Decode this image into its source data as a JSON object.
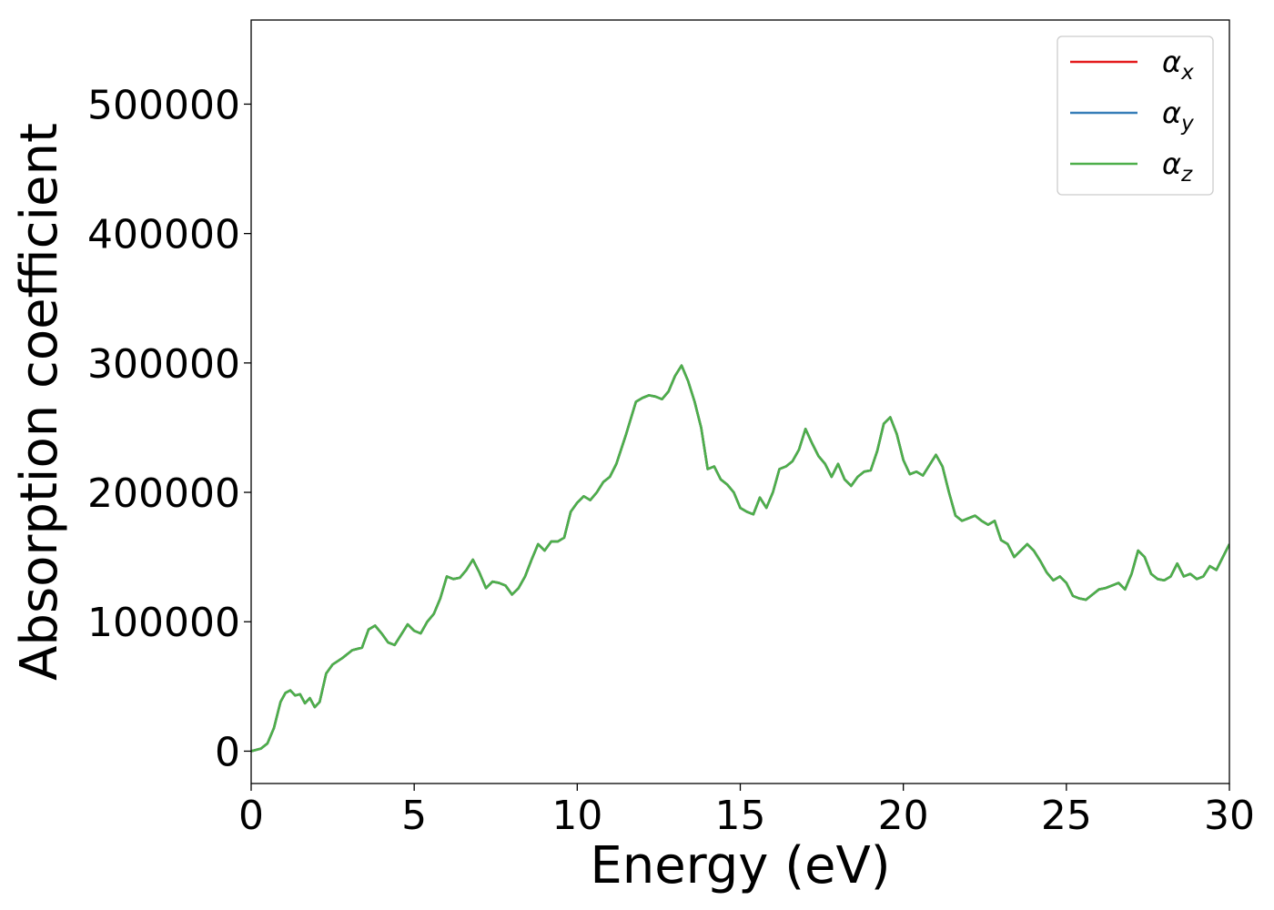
{
  "chart_data": {
    "type": "line",
    "title": "",
    "xlabel": "Energy (eV)",
    "ylabel": "Absorption coefficient",
    "xlim": [
      0,
      30
    ],
    "ylim": [
      -25000,
      565000
    ],
    "xticks": [
      0,
      5,
      10,
      15,
      20,
      25,
      30
    ],
    "xtick_labels": [
      "0",
      "5",
      "10",
      "15",
      "20",
      "25",
      "30"
    ],
    "yticks": [
      0,
      100000,
      200000,
      300000,
      400000,
      500000
    ],
    "ytick_labels": [
      "0",
      "100000",
      "200000",
      "300000",
      "400000",
      "500000"
    ],
    "grid": false,
    "legend_position": "top-right",
    "colors": {
      "alpha_x": "#e41a1c",
      "alpha_y": "#377eb8",
      "alpha_z": "#4daf4a"
    },
    "legend": [
      {
        "symbol": "α",
        "subscript": "x",
        "color": "#e41a1c"
      },
      {
        "symbol": "α",
        "subscript": "y",
        "color": "#377eb8"
      },
      {
        "symbol": "α",
        "subscript": "z",
        "color": "#4daf4a"
      }
    ],
    "note": "All three series overlap exactly; only the last-drawn (alpha_z) is visible.",
    "x": [
      0,
      0.3,
      0.5,
      0.7,
      0.9,
      1.05,
      1.2,
      1.35,
      1.5,
      1.65,
      1.8,
      1.95,
      2.1,
      2.3,
      2.5,
      2.8,
      3.1,
      3.4,
      3.6,
      3.8,
      4.0,
      4.2,
      4.4,
      4.6,
      4.8,
      5.0,
      5.2,
      5.4,
      5.6,
      5.8,
      6.0,
      6.2,
      6.4,
      6.6,
      6.8,
      7.0,
      7.2,
      7.4,
      7.6,
      7.8,
      8.0,
      8.2,
      8.4,
      8.6,
      8.8,
      9.0,
      9.2,
      9.4,
      9.6,
      9.8,
      10.0,
      10.2,
      10.4,
      10.6,
      10.8,
      11.0,
      11.2,
      11.5,
      11.8,
      12.0,
      12.2,
      12.4,
      12.6,
      12.8,
      13.0,
      13.2,
      13.4,
      13.6,
      13.8,
      14.0,
      14.2,
      14.4,
      14.6,
      14.8,
      15.0,
      15.2,
      15.4,
      15.6,
      15.8,
      16.0,
      16.2,
      16.4,
      16.6,
      16.8,
      17.0,
      17.2,
      17.4,
      17.6,
      17.8,
      18.0,
      18.2,
      18.4,
      18.6,
      18.8,
      19.0,
      19.2,
      19.4,
      19.6,
      19.8,
      20.0,
      20.2,
      20.4,
      20.6,
      20.8,
      21.0,
      21.2,
      21.4,
      21.6,
      21.8,
      22.0,
      22.2,
      22.4,
      22.6,
      22.8,
      23.0,
      23.2,
      23.4,
      23.6,
      23.8,
      24.0,
      24.2,
      24.4,
      24.6,
      24.8,
      25.0,
      25.2,
      25.4,
      25.6,
      25.8,
      26.0,
      26.2,
      26.4,
      26.6,
      26.8,
      27.0,
      27.2,
      27.4,
      27.6,
      27.8,
      28.0,
      28.2,
      28.4,
      28.6,
      28.8,
      29.0,
      29.2,
      29.4,
      29.6,
      29.8,
      30.0
    ],
    "series": [
      {
        "name": "αx",
        "color": "#e41a1c",
        "values": [
          0,
          2000,
          6000,
          18000,
          38000,
          45000,
          47000,
          43000,
          44000,
          37000,
          41000,
          34000,
          38000,
          60000,
          67000,
          72000,
          78000,
          80000,
          94000,
          97000,
          91000,
          84000,
          82000,
          90000,
          98000,
          93000,
          91000,
          100000,
          106000,
          118000,
          135000,
          133000,
          134000,
          140000,
          148000,
          138000,
          126000,
          131000,
          130000,
          128000,
          121000,
          126000,
          135000,
          148000,
          160000,
          155000,
          162000,
          162000,
          165000,
          185000,
          192000,
          197000,
          194000,
          200000,
          208000,
          212000,
          222000,
          245000,
          270000,
          273000,
          275000,
          274000,
          272000,
          278000,
          290000,
          298000,
          286000,
          270000,
          250000,
          218000,
          220000,
          210000,
          206000,
          200000,
          188000,
          185000,
          183000,
          196000,
          188000,
          200000,
          218000,
          220000,
          224000,
          233000,
          249000,
          238000,
          228000,
          222000,
          212000,
          222000,
          210000,
          205000,
          212000,
          216000,
          217000,
          232000,
          253000,
          258000,
          245000,
          225000,
          214000,
          216000,
          213000,
          221000,
          229000,
          220000,
          200000,
          182000,
          178000,
          180000,
          182000,
          178000,
          175000,
          178000,
          163000,
          160000,
          150000,
          155000,
          160000,
          155000,
          147000,
          138000,
          132000,
          135000,
          130000,
          120000,
          118000,
          117000,
          121000,
          125000,
          126000,
          128000,
          130000,
          125000,
          137000,
          155000,
          150000,
          137000,
          133000,
          132000,
          135000,
          145000,
          135000,
          137000,
          133000,
          135000,
          143000,
          140000,
          150000,
          160000
        ]
      },
      {
        "name": "αy",
        "color": "#377eb8",
        "values": [
          0,
          2000,
          6000,
          18000,
          38000,
          45000,
          47000,
          43000,
          44000,
          37000,
          41000,
          34000,
          38000,
          60000,
          67000,
          72000,
          78000,
          80000,
          94000,
          97000,
          91000,
          84000,
          82000,
          90000,
          98000,
          93000,
          91000,
          100000,
          106000,
          118000,
          135000,
          133000,
          134000,
          140000,
          148000,
          138000,
          126000,
          131000,
          130000,
          128000,
          121000,
          126000,
          135000,
          148000,
          160000,
          155000,
          162000,
          162000,
          165000,
          185000,
          192000,
          197000,
          194000,
          200000,
          208000,
          212000,
          222000,
          245000,
          270000,
          273000,
          275000,
          274000,
          272000,
          278000,
          290000,
          298000,
          286000,
          270000,
          250000,
          218000,
          220000,
          210000,
          206000,
          200000,
          188000,
          185000,
          183000,
          196000,
          188000,
          200000,
          218000,
          220000,
          224000,
          233000,
          249000,
          238000,
          228000,
          222000,
          212000,
          222000,
          210000,
          205000,
          212000,
          216000,
          217000,
          232000,
          253000,
          258000,
          245000,
          225000,
          214000,
          216000,
          213000,
          221000,
          229000,
          220000,
          200000,
          182000,
          178000,
          180000,
          182000,
          178000,
          175000,
          178000,
          163000,
          160000,
          150000,
          155000,
          160000,
          155000,
          147000,
          138000,
          132000,
          135000,
          130000,
          120000,
          118000,
          117000,
          121000,
          125000,
          126000,
          128000,
          130000,
          125000,
          137000,
          155000,
          150000,
          137000,
          133000,
          132000,
          135000,
          145000,
          135000,
          137000,
          133000,
          135000,
          143000,
          140000,
          150000,
          160000
        ]
      },
      {
        "name": "αz",
        "color": "#4daf4a",
        "values": [
          0,
          2000,
          6000,
          18000,
          38000,
          45000,
          47000,
          43000,
          44000,
          37000,
          41000,
          34000,
          38000,
          60000,
          67000,
          72000,
          78000,
          80000,
          94000,
          97000,
          91000,
          84000,
          82000,
          90000,
          98000,
          93000,
          91000,
          100000,
          106000,
          118000,
          135000,
          133000,
          134000,
          140000,
          148000,
          138000,
          126000,
          131000,
          130000,
          128000,
          121000,
          126000,
          135000,
          148000,
          160000,
          155000,
          162000,
          162000,
          165000,
          185000,
          192000,
          197000,
          194000,
          200000,
          208000,
          212000,
          222000,
          245000,
          270000,
          273000,
          275000,
          274000,
          272000,
          278000,
          290000,
          298000,
          286000,
          270000,
          250000,
          218000,
          220000,
          210000,
          206000,
          200000,
          188000,
          185000,
          183000,
          196000,
          188000,
          200000,
          218000,
          220000,
          224000,
          233000,
          249000,
          238000,
          228000,
          222000,
          212000,
          222000,
          210000,
          205000,
          212000,
          216000,
          217000,
          232000,
          253000,
          258000,
          245000,
          225000,
          214000,
          216000,
          213000,
          221000,
          229000,
          220000,
          200000,
          182000,
          178000,
          180000,
          182000,
          178000,
          175000,
          178000,
          163000,
          160000,
          150000,
          155000,
          160000,
          155000,
          147000,
          138000,
          132000,
          135000,
          130000,
          120000,
          118000,
          117000,
          121000,
          125000,
          126000,
          128000,
          130000,
          125000,
          137000,
          155000,
          150000,
          137000,
          133000,
          132000,
          135000,
          145000,
          135000,
          137000,
          133000,
          135000,
          143000,
          140000,
          150000,
          160000
        ]
      }
    ]
  }
}
